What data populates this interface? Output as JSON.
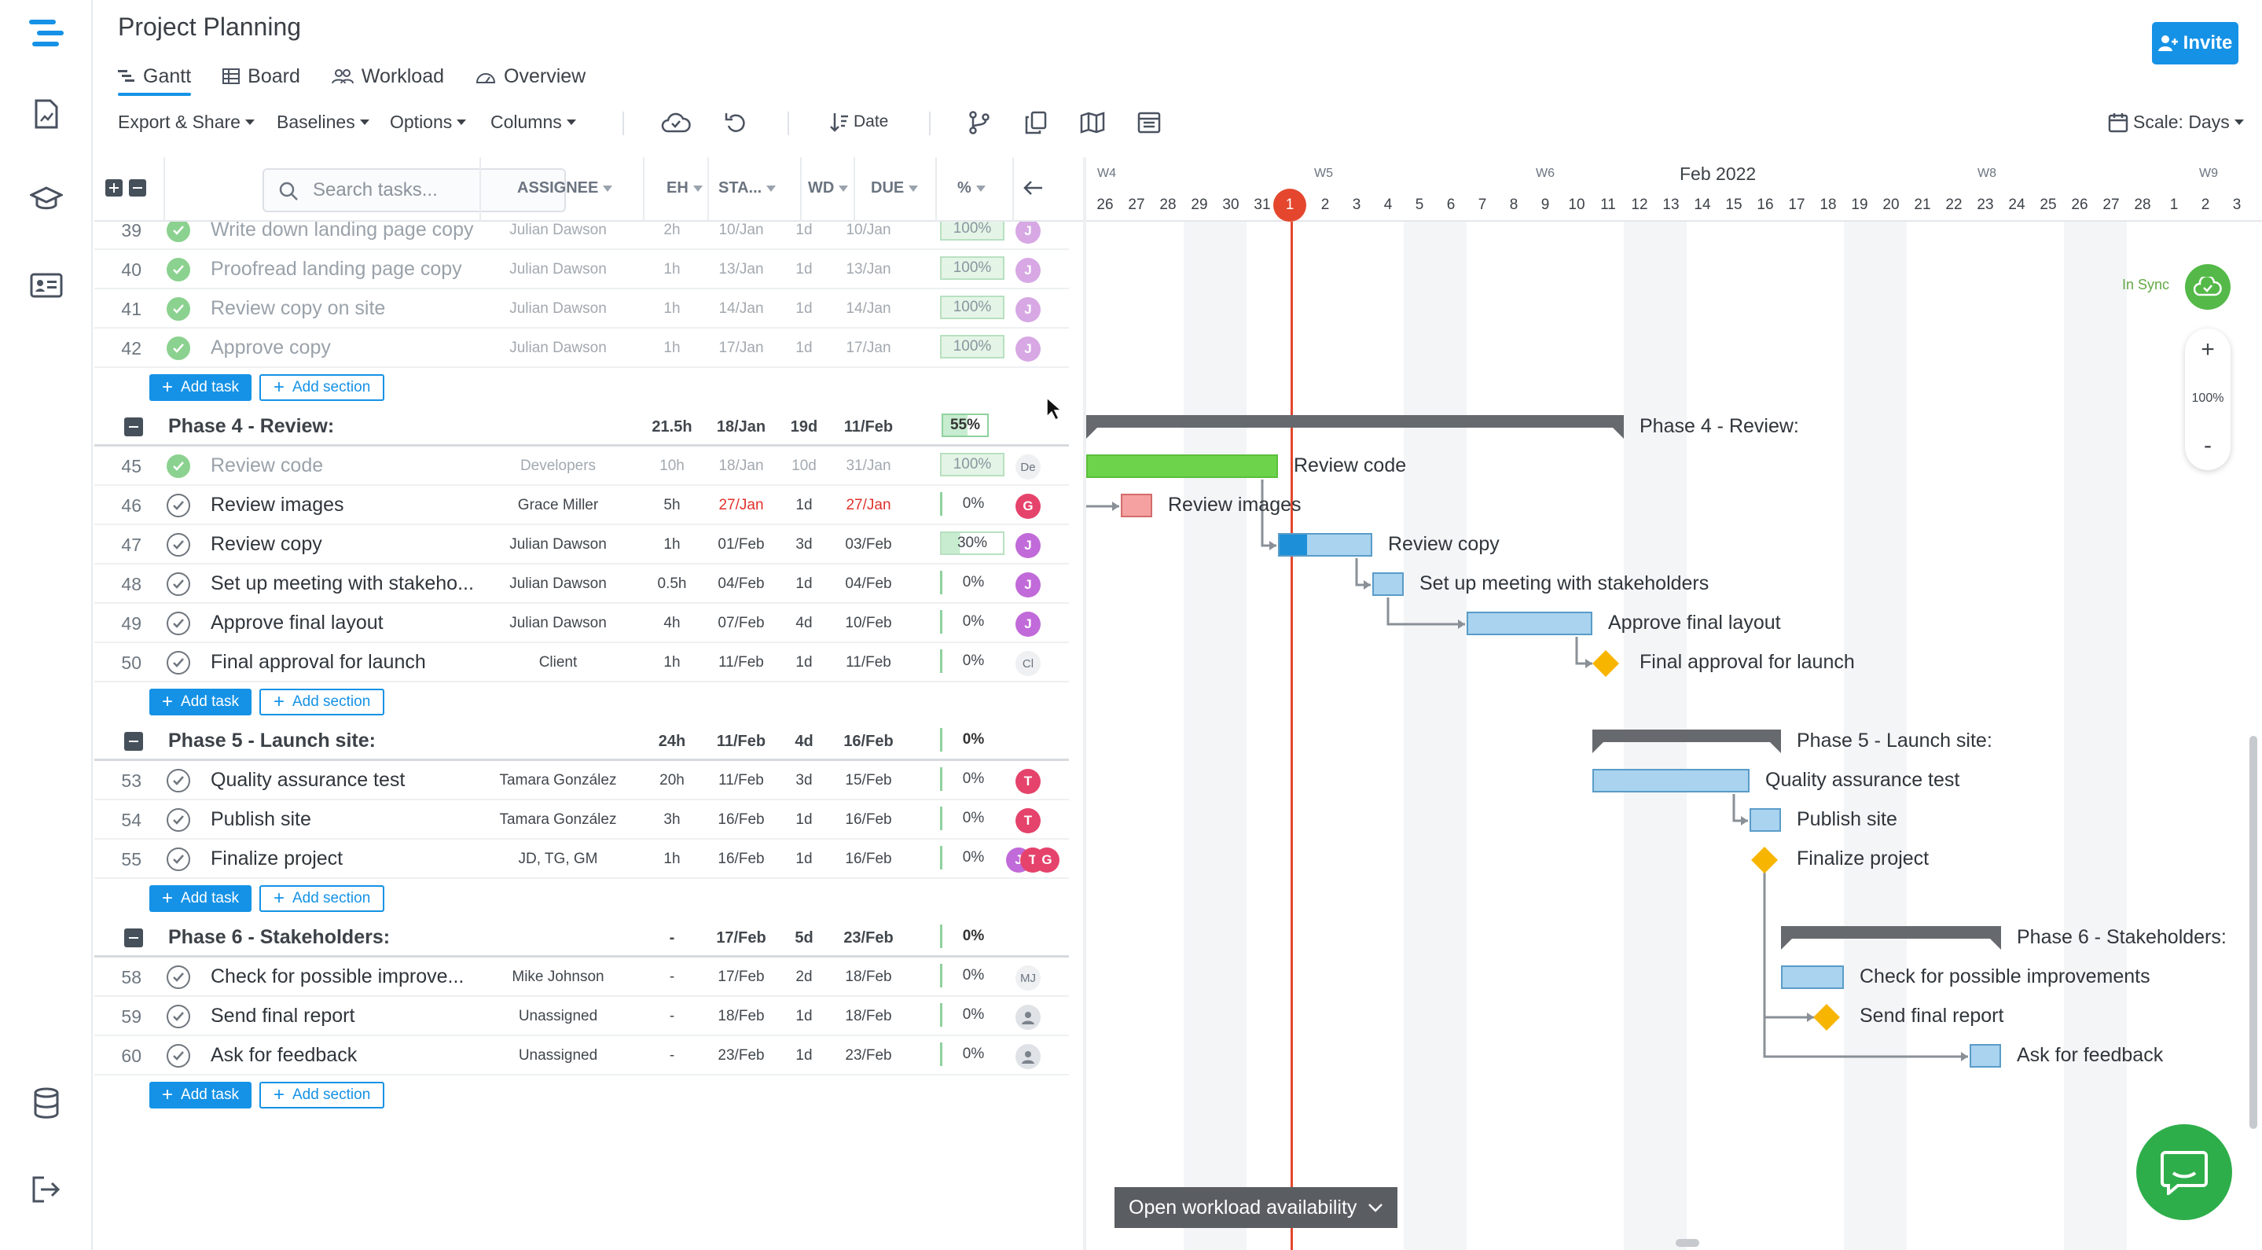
{
  "app": {
    "title": "Project Planning",
    "accent": "#1592e6",
    "invite_label": "Invite"
  },
  "rail": [
    "logo-icon",
    "reports-icon",
    "academy-icon",
    "contacts-icon",
    "database-icon",
    "logout-icon"
  ],
  "tabs": [
    {
      "label": "Gantt",
      "icon": "gantt-icon",
      "active": true
    },
    {
      "label": "Board",
      "icon": "board-icon"
    },
    {
      "label": "Workload",
      "icon": "workload-icon"
    },
    {
      "label": "Overview",
      "icon": "overview-icon"
    }
  ],
  "toolbar": {
    "export": "Export & Share",
    "baselines": "Baselines",
    "options": "Options",
    "columns": "Columns",
    "sort": "Date",
    "scale": "Scale: Days"
  },
  "grid": {
    "search_placeholder": "Search tasks...",
    "columns": {
      "assignee": "ASSIGNEE",
      "eh": "EH",
      "start": "STA...",
      "wd": "WD",
      "due": "DUE",
      "pct": "%"
    },
    "add_task": "Add task",
    "add_section": "Add section"
  },
  "rows_a": [
    {
      "num": "39",
      "name": "Write down landing page copy",
      "assignee": "Julian Dawson",
      "eh": "2h",
      "start": "10/Jan",
      "wd": "1d",
      "due": "10/Jan",
      "pct": "100%",
      "av": "J"
    },
    {
      "num": "40",
      "name": "Proofread landing page copy",
      "assignee": "Julian Dawson",
      "eh": "1h",
      "start": "13/Jan",
      "wd": "1d",
      "due": "13/Jan",
      "pct": "100%",
      "av": "J"
    },
    {
      "num": "41",
      "name": "Review copy on site",
      "assignee": "Julian Dawson",
      "eh": "1h",
      "start": "14/Jan",
      "wd": "1d",
      "due": "14/Jan",
      "pct": "100%",
      "av": "J"
    },
    {
      "num": "42",
      "name": "Approve copy",
      "assignee": "Julian Dawson",
      "eh": "1h",
      "start": "17/Jan",
      "wd": "1d",
      "due": "17/Jan",
      "pct": "100%",
      "av": "J"
    }
  ],
  "phase4": {
    "name": "Phase 4 - Review:",
    "eh": "21.5h",
    "start": "18/Jan",
    "wd": "19d",
    "due": "11/Feb",
    "pct": "55%"
  },
  "rows_b": [
    {
      "num": "45",
      "name": "Review code",
      "assignee": "Developers",
      "eh": "10h",
      "start": "18/Jan",
      "wd": "10d",
      "due": "31/Jan",
      "pct": "100%",
      "av": "De"
    },
    {
      "num": "46",
      "name": "Review images",
      "assignee": "Grace Miller",
      "eh": "5h",
      "start": "27/Jan",
      "wd": "1d",
      "due": "27/Jan",
      "pct": "0%",
      "av": "G"
    },
    {
      "num": "47",
      "name": "Review copy",
      "assignee": "Julian Dawson",
      "eh": "1h",
      "start": "01/Feb",
      "wd": "3d",
      "due": "03/Feb",
      "pct": "30%",
      "av": "J"
    },
    {
      "num": "48",
      "name": "Set up meeting with stakeho...",
      "assignee": "Julian Dawson",
      "eh": "0.5h",
      "start": "04/Feb",
      "wd": "1d",
      "due": "04/Feb",
      "pct": "0%",
      "av": "J"
    },
    {
      "num": "49",
      "name": "Approve final layout",
      "assignee": "Julian Dawson",
      "eh": "4h",
      "start": "07/Feb",
      "wd": "4d",
      "due": "10/Feb",
      "pct": "0%",
      "av": "J"
    },
    {
      "num": "50",
      "name": "Final approval for launch",
      "assignee": "Client",
      "eh": "1h",
      "start": "11/Feb",
      "wd": "1d",
      "due": "11/Feb",
      "pct": "0%",
      "av": "Cl"
    }
  ],
  "phase5": {
    "name": "Phase 5 - Launch site:",
    "eh": "24h",
    "start": "11/Feb",
    "wd": "4d",
    "due": "16/Feb",
    "pct": "0%"
  },
  "rows_c": [
    {
      "num": "53",
      "name": "Quality assurance test",
      "assignee": "Tamara González",
      "eh": "20h",
      "start": "11/Feb",
      "wd": "3d",
      "due": "15/Feb",
      "pct": "0%",
      "av": "T"
    },
    {
      "num": "54",
      "name": "Publish site",
      "assignee": "Tamara González",
      "eh": "3h",
      "start": "16/Feb",
      "wd": "1d",
      "due": "16/Feb",
      "pct": "0%",
      "av": "T"
    },
    {
      "num": "55",
      "name": "Finalize project",
      "assignee": "JD, TG, GM",
      "eh": "1h",
      "start": "16/Feb",
      "wd": "1d",
      "due": "16/Feb",
      "pct": "0%",
      "av": "J",
      "av2": "T",
      "av3": "G"
    }
  ],
  "phase6": {
    "name": "Phase 6 - Stakeholders:",
    "eh": "-",
    "start": "17/Feb",
    "wd": "5d",
    "due": "23/Feb",
    "pct": "0%"
  },
  "rows_d": [
    {
      "num": "58",
      "name": "Check for possible improve...",
      "assignee": "Mike Johnson",
      "eh": "-",
      "start": "17/Feb",
      "wd": "2d",
      "due": "18/Feb",
      "pct": "0%",
      "av": "MJ"
    },
    {
      "num": "59",
      "name": "Send final report",
      "assignee": "Unassigned",
      "eh": "-",
      "start": "18/Feb",
      "wd": "1d",
      "due": "18/Feb",
      "pct": "0%",
      "av": ""
    },
    {
      "num": "60",
      "name": "Ask for feedback",
      "assignee": "Unassigned",
      "eh": "-",
      "start": "23/Feb",
      "wd": "1d",
      "due": "23/Feb",
      "pct": "0%",
      "av": ""
    }
  ],
  "timeline": {
    "month": "Feb 2022",
    "weeks": [
      "W4",
      "W5",
      "W6",
      "W8",
      "W9"
    ],
    "days": [
      "26",
      "27",
      "28",
      "29",
      "30",
      "31",
      "1",
      "2",
      "3",
      "4",
      "5",
      "6",
      "7",
      "8",
      "9",
      "10",
      "11",
      "12",
      "13",
      "14",
      "15",
      "16",
      "17",
      "18",
      "19",
      "20",
      "21",
      "22",
      "23",
      "24",
      "25",
      "26",
      "27",
      "28",
      "1",
      "2",
      "3"
    ],
    "today": "1"
  },
  "gantt_labels": {
    "phase4": "Phase 4 - Review:",
    "review_code": "Review code",
    "review_images": "Review images",
    "review_copy": "Review copy",
    "setup_meeting": "Set up meeting with stakeholders",
    "approve_layout": "Approve final layout",
    "final_approval": "Final approval for launch",
    "phase5": "Phase 5 - Launch site:",
    "qa": "Quality assurance test",
    "publish": "Publish site",
    "finalize": "Finalize project",
    "phase6": "Phase 6 - Stakeholders:",
    "check": "Check for possible improvements",
    "send_report": "Send final report",
    "ask_feedback": "Ask for feedback"
  },
  "sync_label": "In Sync",
  "zoom": {
    "plus": "+",
    "value": "100%",
    "minus": "-"
  },
  "workload_button": "Open workload availability"
}
